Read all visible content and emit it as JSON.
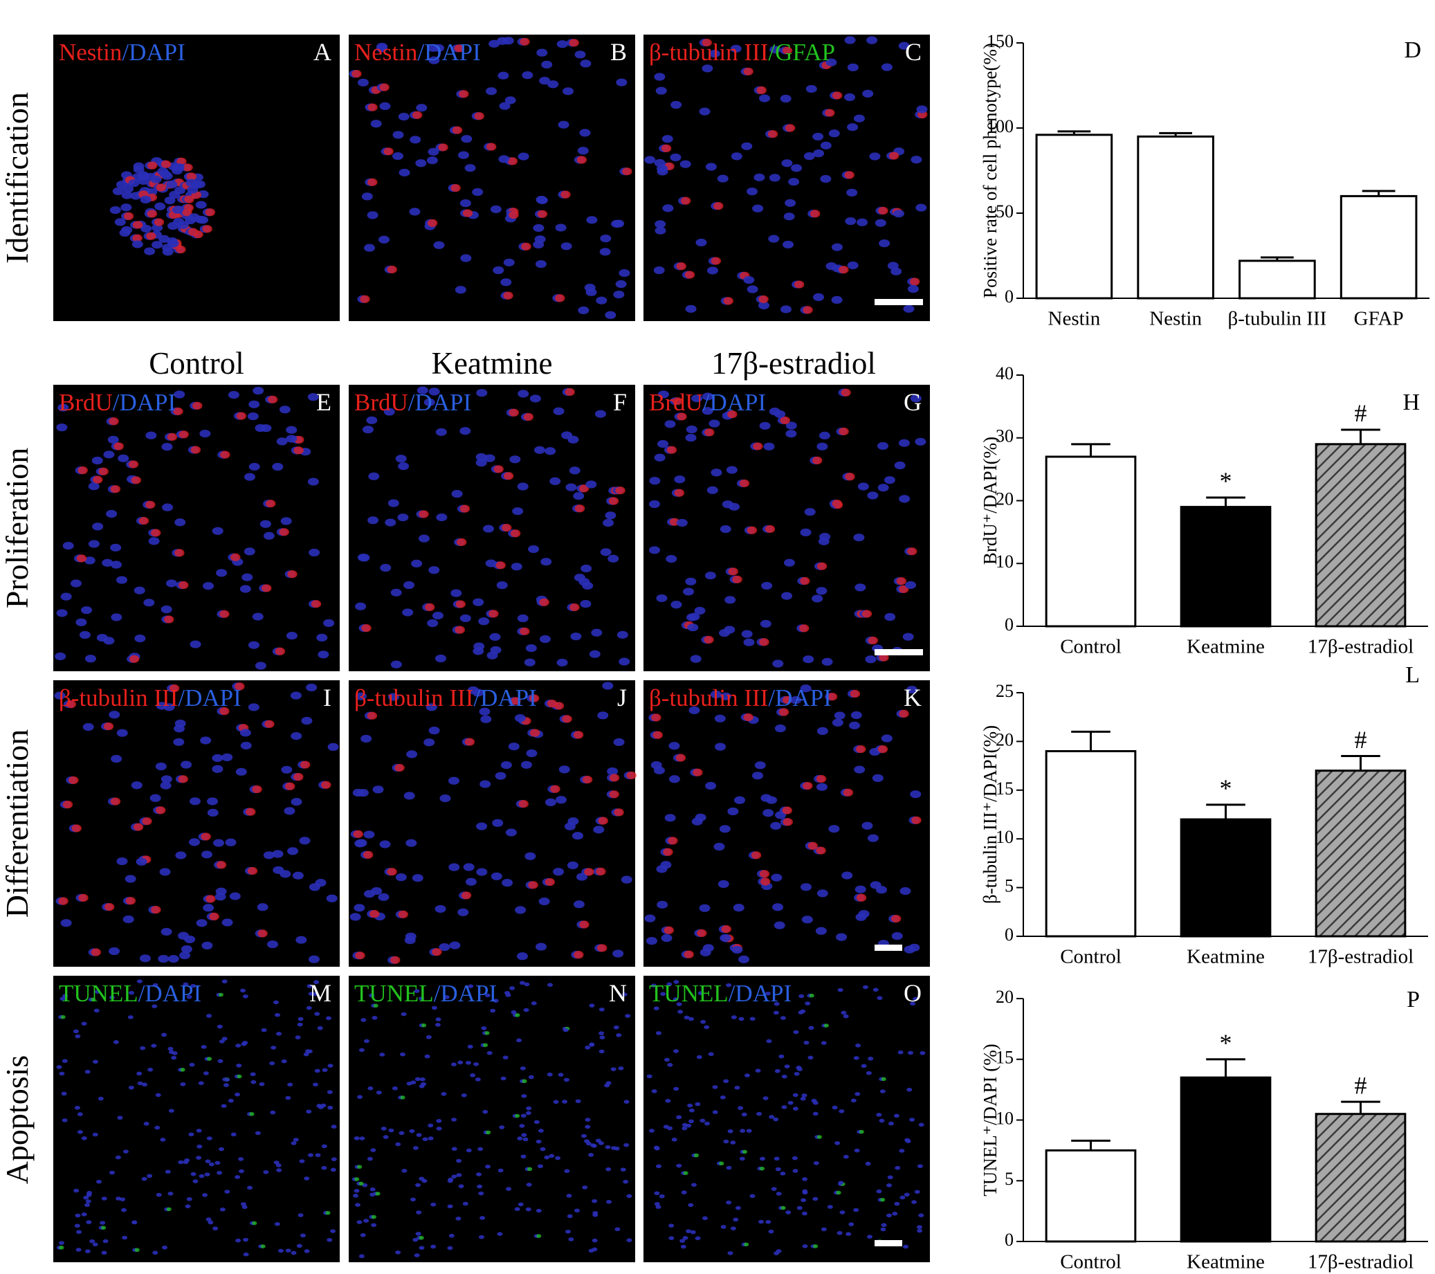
{
  "figure": {
    "row_labels": [
      "Identification",
      "Proliferation",
      "Differentiation",
      "Apoptosis"
    ],
    "column_headers": [
      "Control",
      "Keatmine",
      "17β-estradiol"
    ],
    "panels": [
      {
        "letter": "A",
        "stain": [
          {
            "text": "Nestin",
            "color": "#e8201c"
          },
          {
            "text": "/DAPI",
            "color": "#2a5fe0"
          }
        ]
      },
      {
        "letter": "B",
        "stain": [
          {
            "text": "Nestin",
            "color": "#e8201c"
          },
          {
            "text": "/DAPI",
            "color": "#2a5fe0"
          }
        ]
      },
      {
        "letter": "C",
        "stain": [
          {
            "text": "β-tubulin III",
            "color": "#e8201c"
          },
          {
            "text": "/GFAP",
            "color": "#22c11e"
          }
        ]
      },
      {
        "letter": "E",
        "stain": [
          {
            "text": "BrdU",
            "color": "#e8201c"
          },
          {
            "text": "/DAPI",
            "color": "#2a5fe0"
          }
        ]
      },
      {
        "letter": "F",
        "stain": [
          {
            "text": "BrdU",
            "color": "#e8201c"
          },
          {
            "text": "/DAPI",
            "color": "#2a5fe0"
          }
        ]
      },
      {
        "letter": "G",
        "stain": [
          {
            "text": "BrdU",
            "color": "#e8201c"
          },
          {
            "text": "/DAPI",
            "color": "#2a5fe0"
          }
        ]
      },
      {
        "letter": "I",
        "stain": [
          {
            "text": "β-tubulin III",
            "color": "#e8201c"
          },
          {
            "text": "/DAPI",
            "color": "#2a5fe0"
          }
        ]
      },
      {
        "letter": "J",
        "stain": [
          {
            "text": "β-tubulin III",
            "color": "#e8201c"
          },
          {
            "text": "/DAPI",
            "color": "#2a5fe0"
          }
        ]
      },
      {
        "letter": "K",
        "stain": [
          {
            "text": "β-tubulin III",
            "color": "#e8201c"
          },
          {
            "text": "/DAPI",
            "color": "#2a5fe0"
          }
        ]
      },
      {
        "letter": "M",
        "stain": [
          {
            "text": "TUNEL",
            "color": "#22c11e"
          },
          {
            "text": "/DAPI",
            "color": "#2a5fe0"
          }
        ]
      },
      {
        "letter": "N",
        "stain": [
          {
            "text": "TUNEL",
            "color": "#22c11e"
          },
          {
            "text": "/DAPI",
            "color": "#2a5fe0"
          }
        ]
      },
      {
        "letter": "O",
        "stain": [
          {
            "text": "TUNEL",
            "color": "#22c11e"
          },
          {
            "text": "/DAPI",
            "color": "#2a5fe0"
          }
        ]
      }
    ]
  },
  "chart_data": [
    {
      "type": "bar",
      "panel": "D",
      "ylabel": "Positive rate of cell phenotype(%)",
      "categories": [
        "Nestin",
        "Nestin",
        "β-tubulin III",
        "GFAP"
      ],
      "values": [
        96,
        95,
        22,
        60
      ],
      "errors": [
        2,
        2,
        2,
        3
      ],
      "colors": [
        "#ffffff",
        "#ffffff",
        "#ffffff",
        "#ffffff"
      ],
      "hatch": [
        false,
        false,
        false,
        false
      ],
      "ylim": [
        0,
        150
      ],
      "yticks": [
        0,
        50,
        100,
        150
      ]
    },
    {
      "type": "bar",
      "panel": "H",
      "ylabel": "BrdU⁺/DAPI(%)",
      "categories": [
        "Control",
        "Keatmine",
        "17β-estradiol"
      ],
      "values": [
        27,
        19,
        29
      ],
      "errors": [
        2,
        1.5,
        2.3
      ],
      "annotations": [
        null,
        "*",
        "#"
      ],
      "colors": [
        "#ffffff",
        "#000000",
        "#9a9a9a"
      ],
      "hatch": [
        false,
        false,
        true
      ],
      "ylim": [
        0,
        40
      ],
      "yticks": [
        0,
        10,
        20,
        30,
        40
      ]
    },
    {
      "type": "bar",
      "panel": "L",
      "ylabel": "β-tubulin III⁺/DAPI(%)",
      "categories": [
        "Control",
        "Keatmine",
        "17β-estradiol"
      ],
      "values": [
        19,
        12,
        17
      ],
      "errors": [
        2,
        1.5,
        1.5
      ],
      "annotations": [
        null,
        "*",
        "#"
      ],
      "colors": [
        "#ffffff",
        "#000000",
        "#9a9a9a"
      ],
      "hatch": [
        false,
        false,
        true
      ],
      "ylim": [
        0,
        25
      ],
      "yticks": [
        0,
        5,
        10,
        15,
        20,
        25
      ]
    },
    {
      "type": "bar",
      "panel": "P",
      "ylabel": "TUNEL⁺/DAPI (%)",
      "categories": [
        "Control",
        "Keatmine",
        "17β-estradiol"
      ],
      "values": [
        7.5,
        13.5,
        10.5
      ],
      "errors": [
        0.8,
        1.5,
        1
      ],
      "annotations": [
        null,
        "*",
        "#"
      ],
      "colors": [
        "#ffffff",
        "#000000",
        "#9a9a9a"
      ],
      "hatch": [
        false,
        false,
        true
      ],
      "ylim": [
        0,
        20
      ],
      "yticks": [
        0,
        5,
        10,
        15,
        20
      ]
    }
  ]
}
